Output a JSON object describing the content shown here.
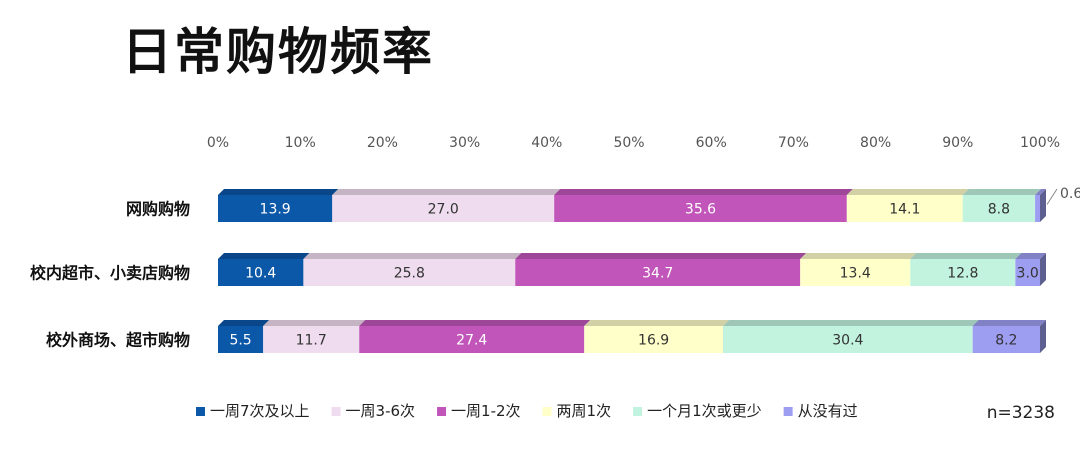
{
  "title": "日常购物频率",
  "sample_note": "n=3238",
  "colors": {
    "series": [
      "#0b57a8",
      "#efdcef",
      "#c155b9",
      "#ffffc9",
      "#c2f3df",
      "#9d9ef2"
    ],
    "text_on": [
      "#ffffff",
      "#333333",
      "#ffffff",
      "#333333",
      "#333333",
      "#333333"
    ]
  },
  "chart_data": {
    "type": "bar",
    "orientation": "horizontal",
    "stacked": true,
    "stack_mode": "percent",
    "categories": [
      "网购购物",
      "校内超市、小卖店购物",
      "校外商场、超市购物"
    ],
    "series": [
      {
        "name": "一周7次及以上",
        "values": [
          13.9,
          10.4,
          5.5
        ]
      },
      {
        "name": "一周3-6次",
        "values": [
          27.0,
          25.8,
          11.7
        ]
      },
      {
        "name": "一周1-2次",
        "values": [
          35.6,
          34.7,
          27.4
        ]
      },
      {
        "name": "两周1次",
        "values": [
          14.1,
          13.4,
          16.9
        ]
      },
      {
        "name": "一个月1次或更少",
        "values": [
          8.8,
          12.8,
          30.4
        ]
      },
      {
        "name": "从没有过",
        "values": [
          0.6,
          3.0,
          8.2
        ]
      }
    ],
    "data_labels": [
      [
        "13.9",
        "10.4",
        "5.5"
      ],
      [
        "27.0",
        "25.8",
        "11.7"
      ],
      [
        "35.6",
        "34.7",
        "27.4"
      ],
      [
        "14.1",
        "13.4",
        "16.9"
      ],
      [
        "8.8",
        "12.8",
        "30.4"
      ],
      [
        "0.6",
        "3.0",
        "8.2"
      ]
    ],
    "x_ticks": [
      "0%",
      "10%",
      "20%",
      "30%",
      "40%",
      "50%",
      "60%",
      "70%",
      "80%",
      "90%",
      "100%"
    ],
    "xlim": [
      0,
      100
    ],
    "axis_position": "top",
    "grid": false,
    "legend_position": "bottom"
  }
}
